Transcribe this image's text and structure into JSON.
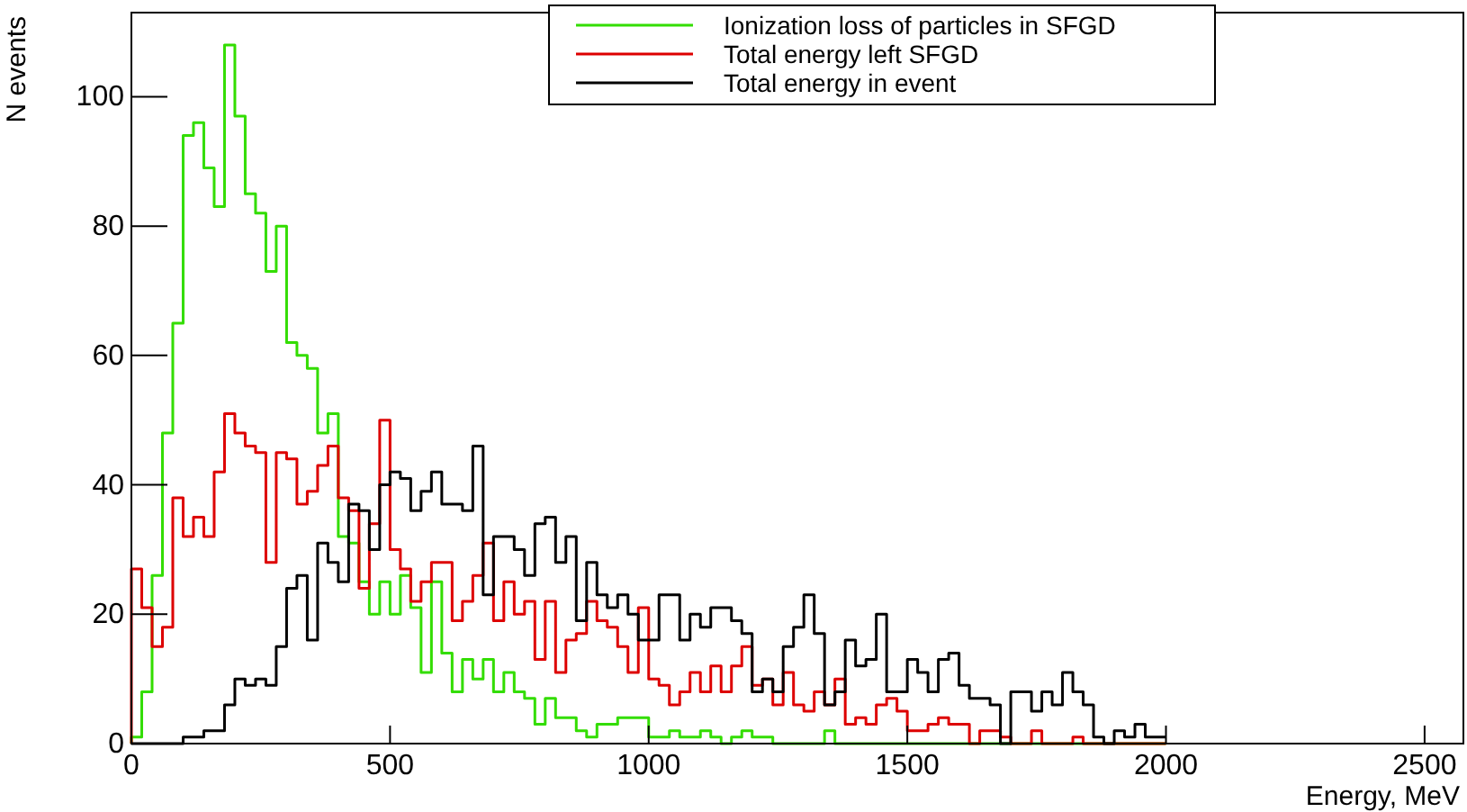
{
  "chart_data": {
    "type": "histogram",
    "xlabel": "Energy, MeV",
    "ylabel": "N events",
    "bins": [
      0,
      20,
      40,
      60,
      80,
      100,
      120,
      140,
      160,
      180,
      200,
      220,
      240,
      260,
      280,
      300,
      320,
      340,
      360,
      380,
      400,
      420,
      440,
      460,
      480,
      500,
      520,
      540,
      560,
      580,
      600,
      620,
      640,
      660,
      680,
      700,
      720,
      740,
      760,
      780,
      800,
      820,
      840,
      860,
      880,
      900,
      920,
      940,
      960,
      980,
      1000,
      1020,
      1040,
      1060,
      1080,
      1100,
      1120,
      1140,
      1160,
      1180,
      1200,
      1220,
      1240,
      1260,
      1280,
      1300,
      1320,
      1340,
      1360,
      1380,
      1400,
      1420,
      1440,
      1460,
      1480,
      1500,
      1520,
      1540,
      1560,
      1580,
      1600,
      1620,
      1640,
      1660,
      1680,
      1700,
      1720,
      1740,
      1760,
      1780,
      1800,
      1820,
      1840,
      1860,
      1880,
      1900,
      1920,
      1940,
      1960,
      1980,
      2000
    ],
    "series": [
      {
        "name": "Ionization loss of particles in SFGD",
        "color": "#33dd00",
        "values": [
          1,
          8,
          26,
          48,
          65,
          94,
          96,
          89,
          83,
          108,
          97,
          85,
          82,
          73,
          80,
          62,
          60,
          58,
          48,
          51,
          32,
          31,
          25,
          20,
          25,
          20,
          26,
          21,
          11,
          25,
          14,
          8,
          13,
          10,
          13,
          8,
          11,
          8,
          7,
          3,
          7,
          4,
          4,
          2,
          1,
          3,
          3,
          4,
          4,
          4,
          1,
          1,
          2,
          1,
          1,
          2,
          1,
          0,
          1,
          2,
          1,
          1,
          0,
          0,
          0,
          0,
          0,
          2,
          0,
          0,
          0,
          0,
          0,
          0,
          0,
          0,
          0,
          0,
          0,
          0,
          0,
          0,
          0,
          0,
          0,
          0,
          0,
          0,
          0,
          0,
          0,
          0,
          0,
          0,
          0,
          0,
          0,
          0,
          0,
          0
        ]
      },
      {
        "name": "Total energy left SFGD",
        "color": "#dd0000",
        "values": [
          27,
          21,
          15,
          18,
          38,
          32,
          35,
          32,
          42,
          51,
          48,
          46,
          45,
          28,
          45,
          44,
          37,
          39,
          43,
          46,
          38,
          36,
          24,
          34,
          50,
          30,
          27,
          22,
          25,
          28,
          28,
          19,
          22,
          26,
          31,
          19,
          25,
          20,
          22,
          13,
          22,
          11,
          16,
          17,
          22,
          19,
          18,
          15,
          11,
          21,
          10,
          9,
          6,
          8,
          11,
          8,
          12,
          8,
          12,
          15,
          9,
          10,
          6,
          11,
          6,
          5,
          8,
          6,
          10,
          3,
          4,
          3,
          6,
          7,
          5,
          2,
          2,
          3,
          4,
          3,
          3,
          0,
          2,
          2,
          1,
          0,
          0,
          2,
          0,
          0,
          0,
          1,
          0,
          0,
          0,
          0,
          0,
          0,
          0,
          0
        ]
      },
      {
        "name": "Total energy in event",
        "color": "#000000",
        "values": [
          0,
          0,
          0,
          0,
          0,
          1,
          1,
          2,
          2,
          6,
          10,
          9,
          10,
          9,
          15,
          24,
          26,
          16,
          31,
          28,
          25,
          37,
          36,
          30,
          40,
          42,
          41,
          36,
          39,
          42,
          37,
          37,
          36,
          46,
          23,
          32,
          32,
          30,
          26,
          34,
          35,
          28,
          32,
          19,
          28,
          23,
          21,
          23,
          20,
          16,
          16,
          23,
          23,
          16,
          20,
          18,
          21,
          21,
          19,
          17,
          8,
          10,
          8,
          15,
          18,
          23,
          17,
          6,
          8,
          16,
          12,
          13,
          20,
          8,
          8,
          13,
          11,
          8,
          13,
          14,
          9,
          7,
          7,
          6,
          0,
          8,
          8,
          5,
          8,
          6,
          11,
          8,
          6,
          1,
          0,
          2,
          1,
          3,
          1,
          1
        ]
      }
    ],
    "xlim": [
      0,
      2575
    ],
    "ylim": [
      0,
      113
    ],
    "xticks": [
      0,
      500,
      1000,
      1500,
      2000,
      2500
    ],
    "yticks": [
      0,
      20,
      40,
      60,
      80,
      100
    ],
    "legend": "top right",
    "grid": false
  }
}
